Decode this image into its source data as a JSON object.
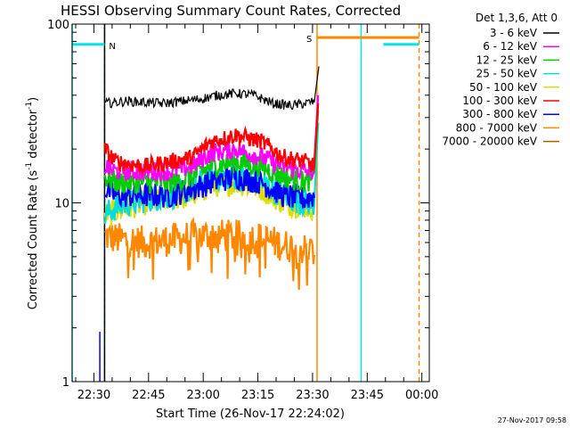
{
  "chart_data": {
    "type": "line",
    "title": "HESSI Observing Summary Count Rates, Corrected",
    "xlabel": "Start Time (26-Nov-17 22:24:02)",
    "ylabel": "Corrected Count Rate (s⁻¹ detector⁻¹)",
    "ylabel_main": "Corrected Count Rate (s",
    "ylabel_sup1": "-1",
    "ylabel_mid": " detector",
    "ylabel_sup2": "-1",
    "ylabel_end": ")",
    "y_scale": "log",
    "ylim": [
      1,
      100
    ],
    "y_ticks": [
      {
        "value": 1,
        "label": "1"
      },
      {
        "value": 10,
        "label": "10"
      },
      {
        "value": 100,
        "label": "100"
      }
    ],
    "x_unit": "minutes since 22:24:02",
    "xlim": [
      0,
      98
    ],
    "x_ticks": [
      {
        "value": 5.97,
        "label": "22:30"
      },
      {
        "value": 20.97,
        "label": "22:45"
      },
      {
        "value": 35.97,
        "label": "23:00"
      },
      {
        "value": 50.97,
        "label": "23:15"
      },
      {
        "value": 65.97,
        "label": "23:30"
      },
      {
        "value": 80.97,
        "label": "23:45"
      },
      {
        "value": 95.97,
        "label": "00:00"
      }
    ],
    "legend": {
      "header": "Det 1,3,6, Att 0",
      "placement": "right"
    },
    "series": [
      {
        "name": "3 - 6 keV",
        "color": "#000000",
        "x": [
          9,
          15,
          25,
          30,
          35,
          40,
          45,
          50,
          55,
          60,
          64,
          66.5,
          67.7
        ],
        "y": [
          36,
          37,
          36,
          37,
          38,
          40,
          41,
          40,
          36,
          35,
          36,
          37,
          58
        ]
      },
      {
        "name": "6 - 12 keV",
        "color": "#ff00ff",
        "x": [
          9,
          12,
          20,
          27,
          33,
          38,
          45,
          52,
          58,
          64,
          66.5,
          67.5
        ],
        "y": [
          16,
          15,
          15,
          15,
          16,
          19,
          20,
          18,
          16,
          15,
          15,
          40
        ]
      },
      {
        "name": "12 - 25 keV",
        "color": "#00cc00",
        "x": [
          9,
          12,
          20,
          27,
          33,
          38,
          45,
          52,
          58,
          64,
          66.5,
          67.5
        ],
        "y": [
          14,
          13,
          13,
          13,
          14,
          16,
          17,
          16,
          14,
          13,
          14,
          33
        ]
      },
      {
        "name": "25 - 50 keV",
        "color": "#00dddd",
        "x": [
          9,
          12,
          20,
          27,
          33,
          38,
          45,
          52,
          58,
          64,
          66.5,
          67.5
        ],
        "y": [
          8.5,
          9.5,
          10.5,
          11,
          12,
          14,
          14,
          13,
          11,
          10,
          10,
          28
        ]
      },
      {
        "name": "50 - 100 keV",
        "color": "#dddd00",
        "x": [
          9,
          12,
          20,
          27,
          33,
          38,
          45,
          52,
          58,
          64,
          66.5
        ],
        "y": [
          8.5,
          9,
          10,
          10.5,
          11,
          12.5,
          13,
          12,
          10,
          9.5,
          9.5
        ]
      },
      {
        "name": "100 - 300 keV",
        "color": "#ff0000",
        "x": [
          9,
          12,
          20,
          27,
          33,
          38,
          45,
          52,
          58,
          64,
          66.5,
          67.5
        ],
        "y": [
          20,
          17,
          16,
          17,
          18,
          22,
          24,
          22,
          18,
          17,
          16,
          36
        ]
      },
      {
        "name": "300 - 800 keV",
        "color": "#0000ff",
        "x": [
          9,
          12,
          20,
          27,
          33,
          38,
          45,
          52,
          58,
          64,
          66.5
        ],
        "y": [
          12,
          11,
          11,
          11,
          12,
          13,
          14,
          13,
          11,
          10.5,
          11
        ]
      },
      {
        "name": "800 - 7000 keV",
        "color": "#ff8800",
        "x": [
          9,
          12,
          20,
          27,
          33,
          38,
          45,
          52,
          58,
          64,
          66.5
        ],
        "y": [
          6.5,
          6.3,
          6.0,
          6.2,
          6.5,
          6.6,
          6.5,
          6.3,
          5.8,
          5.5,
          5.3
        ]
      },
      {
        "name": "7000 - 20000 keV",
        "color": "#996600",
        "x": [],
        "y": []
      }
    ],
    "annotations": [
      {
        "kind": "attenuator_bar",
        "label": "N",
        "color": "#00e5e5",
        "y": 77,
        "x_range": [
          0,
          8.9
        ]
      },
      {
        "kind": "attenuator_bar",
        "label": "",
        "color": "#00e5e5",
        "y": 77,
        "x_range": [
          85.4,
          95.2
        ]
      },
      {
        "kind": "attenuator_bar",
        "label": "S",
        "color": "#ff8800",
        "y": 84,
        "x_range": [
          67.2,
          95.2
        ]
      },
      {
        "kind": "vline",
        "color": "#00e5e5",
        "style": "solid",
        "x": 0
      },
      {
        "kind": "vline",
        "color": "#00e5e5",
        "style": "dashed",
        "x": 8.9
      },
      {
        "kind": "vline",
        "color": "#00e5e5",
        "style": "solid",
        "x": 79.3
      },
      {
        "kind": "vline",
        "color": "#ff8800",
        "style": "solid",
        "x": 67.2
      },
      {
        "kind": "vline",
        "color": "#ff8800",
        "style": "dashed",
        "x": 95.2
      },
      {
        "kind": "vline",
        "color": "#000000",
        "style": "solid",
        "x": 8.9
      },
      {
        "kind": "spike",
        "color": "#0000ff",
        "x": 7.6,
        "y_range": [
          1,
          1.9
        ]
      }
    ]
  },
  "footer": {
    "timestamp": "27-Nov-2017 09:58"
  }
}
